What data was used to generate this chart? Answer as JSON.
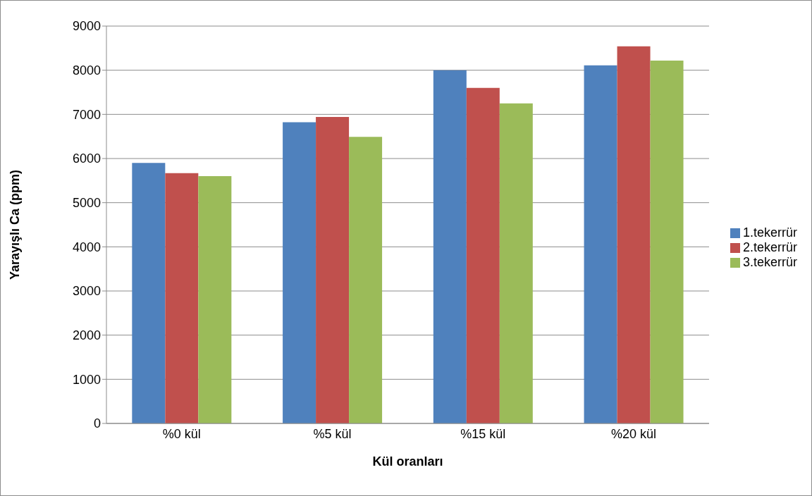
{
  "chart_data": {
    "type": "bar",
    "xlabel": "Kül oranları",
    "ylabel": "Yarayışlı Ca (ppm)",
    "categories": [
      "%0 kül",
      "%5 kül",
      "%15 kül",
      "%20 kül"
    ],
    "series": [
      {
        "name": "1.tekerrür",
        "color": "#4f81bd",
        "values": [
          5900,
          6820,
          8000,
          8110
        ]
      },
      {
        "name": "2.tekerrür",
        "color": "#c0504d",
        "values": [
          5670,
          6940,
          7600,
          8540
        ]
      },
      {
        "name": "3.tekerrür",
        "color": "#9bbb59",
        "values": [
          5600,
          6490,
          7250,
          8220
        ]
      }
    ],
    "ylim": [
      0,
      9000
    ],
    "yticks": [
      0,
      1000,
      2000,
      3000,
      4000,
      5000,
      6000,
      7000,
      8000,
      9000
    ],
    "grid": "y",
    "legend": "right"
  }
}
